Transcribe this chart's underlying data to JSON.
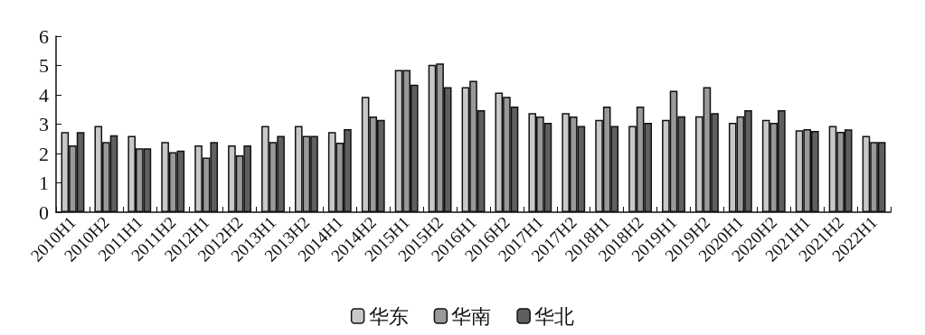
{
  "chart_data": {
    "type": "bar",
    "categories": [
      "2010H1",
      "2010H2",
      "2011H1",
      "2011H2",
      "2012H1",
      "2012H2",
      "2013H1",
      "2013H2",
      "2014H1",
      "2014H2",
      "2015H1",
      "2015H2",
      "2016H1",
      "2016H2",
      "2017H1",
      "2017H2",
      "2018H1",
      "2018H2",
      "2019H1",
      "2019H2",
      "2020H1",
      "2020H2",
      "2021H1",
      "2021H2",
      "2022H1"
    ],
    "series": [
      {
        "name": "华东",
        "color": "#c8c8c8",
        "values": [
          2.73,
          2.94,
          2.6,
          2.39,
          2.28,
          2.28,
          2.94,
          2.94,
          2.73,
          3.93,
          4.85,
          5.02,
          4.26,
          4.08,
          3.38,
          3.38,
          3.15,
          2.94,
          3.15,
          3.27,
          3.05,
          3.15,
          2.79,
          2.94,
          2.6
        ]
      },
      {
        "name": "华南",
        "color": "#999999",
        "values": [
          2.28,
          2.39,
          2.18,
          2.05,
          1.86,
          1.94,
          2.39,
          2.6,
          2.37,
          3.26,
          4.85,
          5.07,
          4.48,
          3.93,
          3.26,
          3.26,
          3.6,
          3.6,
          4.14,
          4.26,
          3.27,
          3.05,
          2.83,
          2.74,
          2.39
        ]
      },
      {
        "name": "华北",
        "color": "#5f5f5f",
        "values": [
          2.73,
          2.62,
          2.18,
          2.1,
          2.39,
          2.28,
          2.6,
          2.6,
          2.83,
          3.15,
          4.35,
          4.26,
          3.48,
          3.6,
          3.05,
          2.94,
          2.94,
          3.05,
          3.27,
          3.38,
          3.48,
          3.48,
          2.77,
          2.82,
          2.39
        ]
      }
    ],
    "ylim": [
      0,
      6
    ],
    "yticks": [
      0,
      1,
      2,
      3,
      4,
      5,
      6
    ],
    "grid": false,
    "legend": "bottom"
  }
}
